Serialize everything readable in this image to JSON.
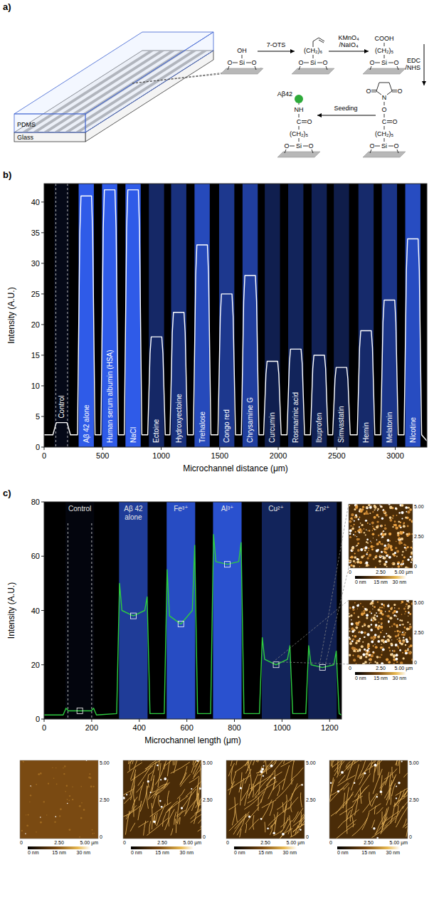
{
  "panel_labels": [
    "a)",
    "b)",
    "c)"
  ],
  "diagram": {
    "layers": [
      "PDMS",
      "Glass"
    ],
    "reagents": [
      {
        "lines": [
          "7-OTS"
        ]
      },
      {
        "lines": [
          "KMnO₄",
          "/NaIO₄"
        ]
      },
      {
        "lines": [
          "EDC",
          "/NHS"
        ]
      },
      {
        "lines": [
          "Seeding"
        ]
      }
    ],
    "structures": [
      {
        "chain": [
          "OH",
          "Si"
        ],
        "substrate": [
          "O",
          "O"
        ]
      },
      {
        "chain": [
          "(CH₂)₆",
          "Si"
        ],
        "substrate": [
          "O",
          "O"
        ]
      },
      {
        "chain": [
          "COOH",
          "(CH₂)₅",
          "Si"
        ],
        "substrate": [
          "O",
          "O"
        ]
      },
      {
        "chain": [
          "N",
          "O",
          "C",
          "(CH₂)₅",
          "Si"
        ],
        "ring": [
          "O",
          "O"
        ],
        "carbonyl": "O",
        "substrate": [
          "O",
          "O"
        ]
      },
      {
        "label": "Aβ42",
        "chain": [
          "NH",
          "C",
          "(CH₂)₅",
          "Si"
        ],
        "carbonyl": "O",
        "substrate": [
          "O",
          "O"
        ]
      }
    ]
  },
  "chart_data": [
    {
      "type": "line",
      "x_label": "Microchannel distance (μm)",
      "y_label": "Intensity (A.U.)",
      "color": "#ffffff",
      "xlim": [
        0,
        3270
      ],
      "ylim": [
        0,
        43
      ],
      "xticks": [
        0,
        500,
        1000,
        1500,
        2000,
        2500,
        3000
      ],
      "yticks": [
        0,
        5,
        10,
        15,
        20,
        25,
        30,
        35,
        40
      ],
      "dashed_lines": [
        100,
        200
      ],
      "channels": [
        {
          "label": "Control",
          "x": 150
        },
        {
          "label": "Aβ 42 alone",
          "x": 360
        },
        {
          "label": "Human serum albumin (HSA)",
          "x": 560
        },
        {
          "label": "NaCl",
          "x": 760
        },
        {
          "label": "Ectoine",
          "x": 960
        },
        {
          "label": "Hydroxyectoine",
          "x": 1150
        },
        {
          "label": "Trehalose",
          "x": 1350
        },
        {
          "label": "Congo red",
          "x": 1560
        },
        {
          "label": "Chrysamine G",
          "x": 1760
        },
        {
          "label": "Curcumin",
          "x": 1950
        },
        {
          "label": "Rosmarinic acid",
          "x": 2150
        },
        {
          "label": "Ibuprofen",
          "x": 2350
        },
        {
          "label": "Simvastatin",
          "x": 2540
        },
        {
          "label": "Hemin",
          "x": 2750
        },
        {
          "label": "Melatonin",
          "x": 2950
        },
        {
          "label": "Nicotine",
          "x": 3150
        }
      ],
      "x": [
        0,
        75,
        95,
        105,
        195,
        205,
        225,
        285,
        305,
        315,
        405,
        415,
        435,
        485,
        505,
        515,
        605,
        615,
        635,
        685,
        705,
        715,
        805,
        815,
        835,
        885,
        905,
        915,
        1005,
        1015,
        1035,
        1075,
        1095,
        1105,
        1195,
        1205,
        1225,
        1275,
        1295,
        1305,
        1395,
        1405,
        1425,
        1485,
        1505,
        1515,
        1605,
        1615,
        1635,
        1685,
        1705,
        1715,
        1805,
        1815,
        1835,
        1875,
        1895,
        1905,
        1995,
        2005,
        2025,
        2075,
        2095,
        2105,
        2195,
        2205,
        2225,
        2275,
        2295,
        2305,
        2395,
        2405,
        2425,
        2465,
        2485,
        2495,
        2585,
        2595,
        2615,
        2675,
        2695,
        2705,
        2795,
        2805,
        2825,
        2875,
        2895,
        2905,
        2995,
        3005,
        3025,
        3075,
        3095,
        3105,
        3195,
        3205,
        3225,
        3270
      ],
      "values": [
        2,
        2,
        3.4,
        4,
        4,
        3.4,
        2,
        2,
        34.9,
        41,
        41,
        34.9,
        2,
        2,
        35.7,
        42,
        42,
        35.7,
        2,
        2,
        35.7,
        42,
        42,
        35.7,
        2,
        2,
        15.3,
        18,
        18,
        15.3,
        2,
        2,
        18.7,
        22,
        22,
        18.7,
        2,
        2,
        28.1,
        33,
        33,
        28.1,
        2,
        2,
        21.3,
        25,
        25,
        21.3,
        2,
        2,
        23.8,
        28,
        28,
        23.8,
        2,
        2,
        11.9,
        14,
        14,
        11.9,
        2,
        2,
        13.6,
        16,
        16,
        13.6,
        2,
        2,
        12.8,
        15,
        15,
        12.8,
        2,
        2,
        11.1,
        13,
        13,
        11.1,
        2,
        2,
        16.2,
        19,
        19,
        16.2,
        2,
        2,
        20.4,
        24,
        24,
        20.4,
        2,
        2,
        28.9,
        34,
        34,
        28.9,
        2,
        1
      ]
    },
    {
      "type": "line",
      "x_label": "Microchannel length (μm)",
      "y_label": "Intensity (A.U.)",
      "color": "#2ecc40",
      "xlim": [
        0,
        1250
      ],
      "ylim": [
        0,
        80
      ],
      "xticks": [
        0,
        200,
        400,
        600,
        800,
        1000,
        1200
      ],
      "yticks": [
        0,
        20,
        40,
        60,
        80
      ],
      "dashed_lines": [
        100,
        200
      ],
      "channels": [
        {
          "label": "Control",
          "x": 150
        },
        {
          "label": "Aβ 42 alone",
          "x": 375
        },
        {
          "label": "Fe³⁺",
          "x": 575
        },
        {
          "label": "Al³⁺",
          "x": 770
        },
        {
          "label": "Cu²⁺",
          "x": 975
        },
        {
          "label": "Zn²⁺",
          "x": 1170
        }
      ],
      "x": [
        0,
        80,
        92,
        102,
        150,
        198,
        208,
        220,
        305,
        317,
        327,
        375,
        423,
        433,
        445,
        505,
        517,
        527,
        575,
        623,
        633,
        645,
        700,
        712,
        722,
        770,
        818,
        828,
        840,
        905,
        917,
        927,
        975,
        1023,
        1033,
        1045,
        1100,
        1112,
        1122,
        1170,
        1218,
        1228,
        1240,
        1250
      ],
      "values": [
        1.5,
        1.5,
        4,
        3,
        3,
        3,
        4,
        1.5,
        2,
        50,
        40,
        38,
        40,
        45,
        2,
        2,
        55,
        38,
        35,
        40,
        64,
        2,
        2,
        68,
        58,
        57,
        58,
        65,
        2,
        2,
        30,
        22,
        20,
        22,
        27,
        2,
        2,
        27,
        20,
        19,
        20,
        25,
        2,
        1.5
      ]
    }
  ],
  "afm_images": {
    "x_labels": [
      "0",
      "2.50",
      "5.00 µm"
    ],
    "y_labels": [
      "0",
      "2.50",
      "5.00"
    ],
    "colorbar_labels": [
      "0 nm",
      "15 nm",
      "30 nm"
    ]
  }
}
